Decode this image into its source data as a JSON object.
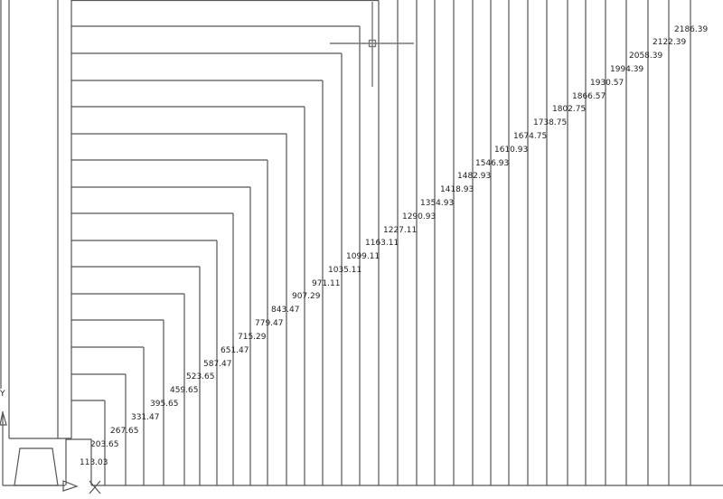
{
  "drawing": {
    "background": "#ffffff",
    "line_color": "#555555",
    "dimension_labels": [
      "113.03",
      "203.65",
      "267.65",
      "331.47",
      "395.65",
      "459.65",
      "523.65",
      "587.47",
      "651.47",
      "715.29",
      "779.47",
      "843.47",
      "907.29",
      "971.11",
      "1035.11",
      "1099.11",
      "1163.11",
      "1227.11",
      "1290.93",
      "1354.93",
      "1418.93",
      "1482.93",
      "1546.93",
      "1610.93",
      "1674.75",
      "1738.75",
      "1802.75",
      "1866.57",
      "1930.57",
      "1994.39",
      "2058.39",
      "2122.39",
      "2186.39"
    ]
  },
  "ucs_icon": {
    "y_label": "Y"
  },
  "cursor": {
    "icon": "crosshair-cursor-icon"
  }
}
